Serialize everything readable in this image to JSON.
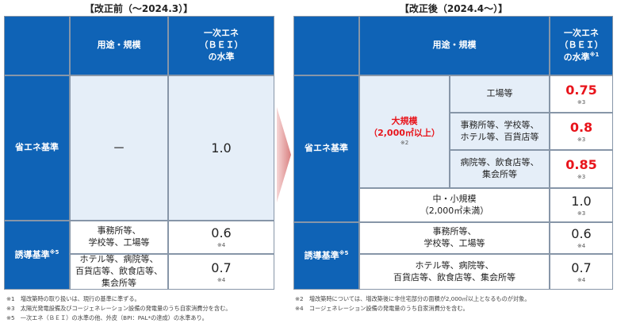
{
  "left": {
    "title": "【改正前（～2024.3）】",
    "col_use": "用途・規模",
    "col_bei": [
      "一次エネ",
      "（ＢＥＩ）",
      "の水準"
    ],
    "energy_std": {
      "label": "省エネ基準",
      "use": "－",
      "bei": "1.0"
    },
    "induce_std": {
      "label": "誘導基準",
      "note": "※5",
      "rows": [
        {
          "use": [
            "事務所等、",
            "学校等、工場等"
          ],
          "bei": "0.6",
          "note": "※4"
        },
        {
          "use": [
            "ホテル等、病院等、",
            "百貨店等、飲食店等、",
            "集会所等"
          ],
          "bei": "0.7",
          "note": "※4"
        }
      ]
    },
    "footnotes": [
      "※1　増改築時の取り扱いは、現行の基準に準ずる。",
      "※3　太陽光発電設備及びコージェネレーション設備の発電量のうち自家消費分を含む。",
      "※5　一次エネ（ＢＥＩ）の水準の他、外皮（BPI：PAL*の達成）の水準あり。"
    ]
  },
  "right": {
    "title": "【改正後（2024.4～）】",
    "col_use": "用途・規模",
    "col_bei": [
      "一次エネ",
      "（ＢＥＩ）",
      "の水準"
    ],
    "col_bei_note": "※1",
    "energy_std": {
      "label": "省エネ基準",
      "large": {
        "label": "大規模",
        "size": "（2,000㎡以上）",
        "note": "※2",
        "rows": [
          {
            "use": [
              "工場等"
            ],
            "bei": "0.75",
            "note": "※3"
          },
          {
            "use": [
              "事務所等、学校等、",
              "ホテル等、百貨店等"
            ],
            "bei": "0.8",
            "note": "※3"
          },
          {
            "use": [
              "病院等、飲食店等、",
              "集会所等"
            ],
            "bei": "0.85",
            "note": "※3"
          }
        ]
      },
      "small": {
        "use": [
          "中・小規模",
          "（2,000㎡未満）"
        ],
        "bei": "1.0",
        "note": "※3"
      }
    },
    "induce_std": {
      "label": "誘導基準",
      "note": "※5",
      "rows": [
        {
          "use": [
            "事務所等、",
            "学校等、工場等"
          ],
          "bei": "0.6",
          "note": "※4"
        },
        {
          "use": [
            "ホテル等、病院等、",
            "百貨店等、飲食店等、集会所等"
          ],
          "bei": "0.7",
          "note": "※4"
        }
      ]
    },
    "footnotes": [
      "※2　増改築時については、増改築後に非住宅部分の面積が2,000㎡以上となるものが対象。",
      "※4　コージェネレーション設備の発電量のうち自家消費分を含む。"
    ]
  }
}
